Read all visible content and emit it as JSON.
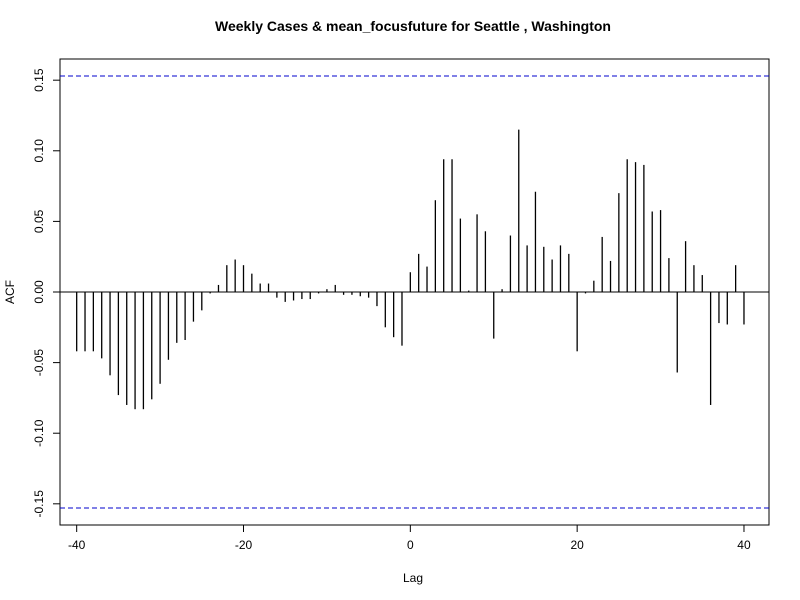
{
  "chart_data": {
    "type": "bar",
    "title": "Weekly Cases & mean_focusfuture for Seattle , Washington",
    "xlabel": "Lag",
    "ylabel": "ACF",
    "xlim": [
      -42,
      43
    ],
    "ylim": [
      -0.165,
      0.165
    ],
    "x_ticks": [
      -40,
      -20,
      0,
      20,
      40
    ],
    "x_tick_labels": [
      "-40",
      "-20",
      "0",
      "20",
      "40"
    ],
    "y_ticks": [
      -0.15,
      -0.1,
      -0.05,
      0.0,
      0.05,
      0.1,
      0.15
    ],
    "y_tick_labels": [
      "-0.15",
      "-0.10",
      "-0.05",
      "0.00",
      "0.05",
      "0.10",
      "0.15"
    ],
    "confidence_bounds": [
      0.153,
      -0.153
    ],
    "bound_color": "#0000cc",
    "bar_color": "#000000",
    "lags": [
      -40,
      -39,
      -38,
      -37,
      -36,
      -35,
      -34,
      -33,
      -32,
      -31,
      -30,
      -29,
      -28,
      -27,
      -26,
      -25,
      -24,
      -23,
      -22,
      -21,
      -20,
      -19,
      -18,
      -17,
      -16,
      -15,
      -14,
      -13,
      -12,
      -11,
      -10,
      -9,
      -8,
      -7,
      -6,
      -5,
      -4,
      -3,
      -2,
      -1,
      0,
      1,
      2,
      3,
      4,
      5,
      6,
      7,
      8,
      9,
      10,
      11,
      12,
      13,
      14,
      15,
      16,
      17,
      18,
      19,
      20,
      21,
      22,
      23,
      24,
      25,
      26,
      27,
      28,
      29,
      30,
      31,
      32,
      33,
      34,
      35,
      36,
      37,
      38,
      39,
      40
    ],
    "values": [
      -0.042,
      -0.042,
      -0.042,
      -0.047,
      -0.059,
      -0.073,
      -0.08,
      -0.083,
      -0.083,
      -0.076,
      -0.065,
      -0.048,
      -0.036,
      -0.034,
      -0.021,
      -0.013,
      -0.001,
      0.005,
      0.019,
      0.023,
      0.019,
      0.013,
      0.006,
      0.006,
      -0.004,
      -0.007,
      -0.006,
      -0.005,
      -0.005,
      -0.001,
      0.002,
      0.005,
      -0.002,
      -0.002,
      -0.003,
      -0.004,
      -0.01,
      -0.025,
      -0.032,
      -0.038,
      0.014,
      0.027,
      0.018,
      0.065,
      0.094,
      0.094,
      0.052,
      0.001,
      0.055,
      0.043,
      -0.033,
      0.002,
      0.04,
      0.115,
      0.033,
      0.071,
      0.032,
      0.023,
      0.033,
      0.027,
      -0.042,
      -0.001,
      0.008,
      0.039,
      0.022,
      0.07,
      0.094,
      0.092,
      0.09,
      0.057,
      0.058,
      0.024,
      -0.057,
      0.036,
      0.019,
      0.012,
      -0.08,
      -0.022,
      -0.023,
      0.019,
      -0.023
    ]
  }
}
